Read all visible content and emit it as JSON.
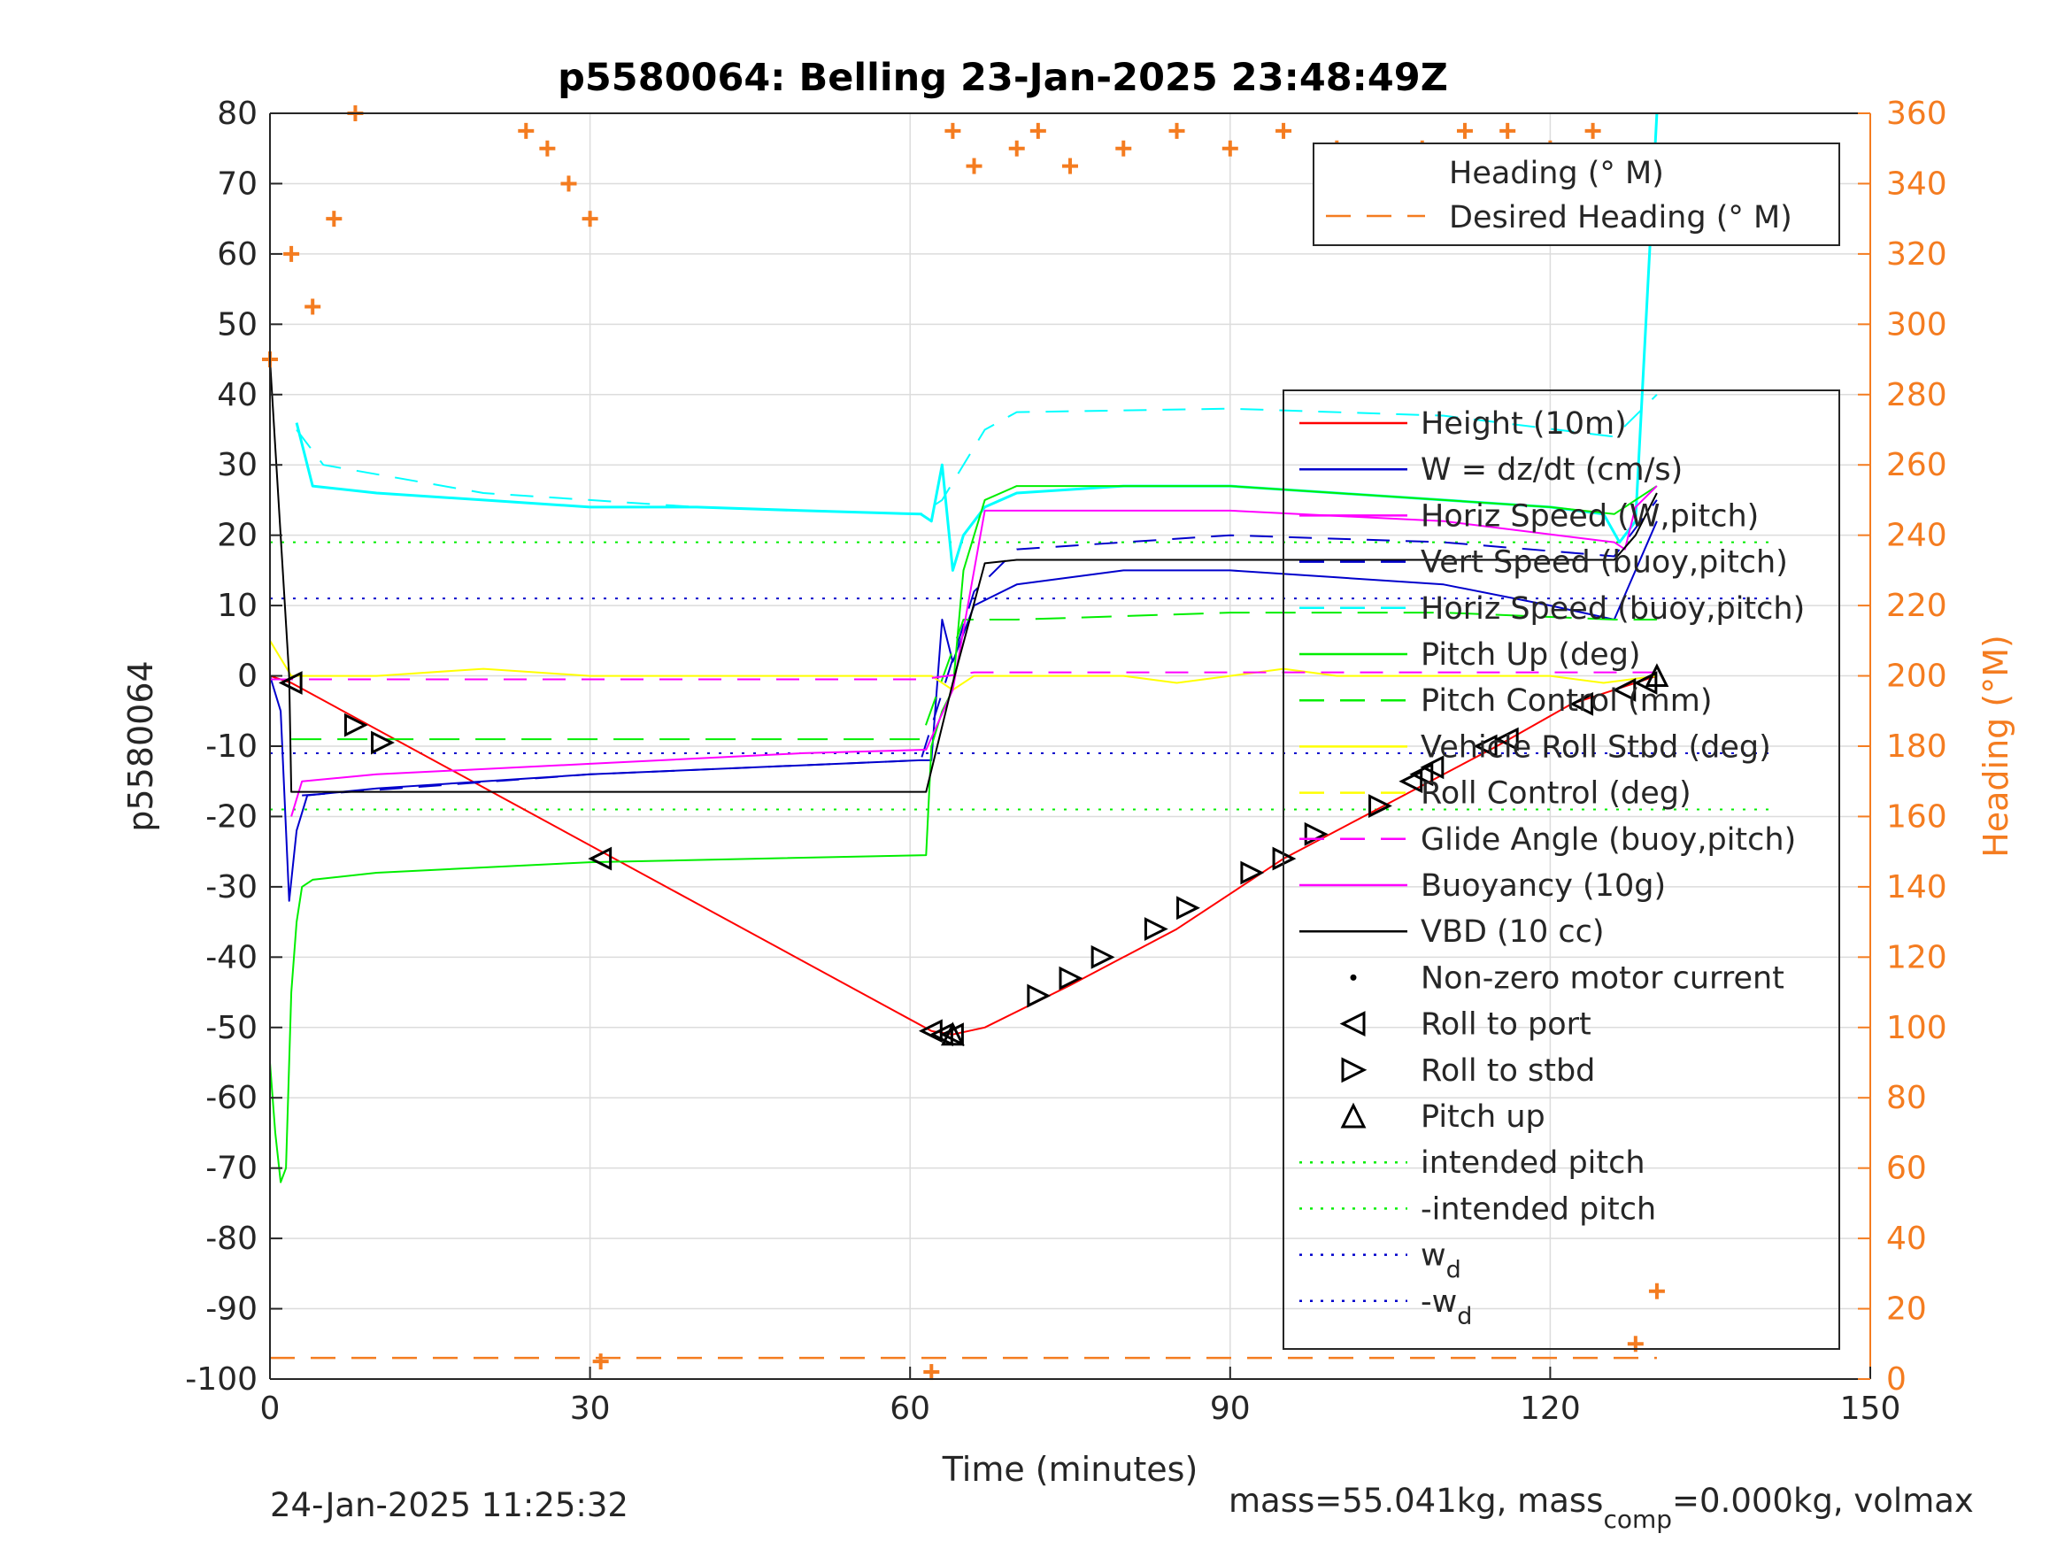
{
  "colors": {
    "heading": "#f47c20",
    "height": "#ff0000",
    "w": "#0000cc",
    "horiz_speed": "#00ffff",
    "pitch": "#00ee00",
    "roll": "#ffff00",
    "glide": "#ff00ff",
    "vbd": "#000000",
    "grid": "#dcdcdc"
  },
  "chart_data": {
    "type": "line",
    "title": "p5580064: Belling 23-Jan-2025 23:48:49Z",
    "xlabel": "Time (minutes)",
    "ylabel": "p5580064",
    "y2label": "Heading (°M)",
    "xlim": [
      0,
      150
    ],
    "ylim": [
      -100,
      80
    ],
    "y2lim": [
      0,
      360
    ],
    "x_ticks": [
      "0",
      "30",
      "60",
      "90",
      "120",
      "150"
    ],
    "y_ticks": [
      "80",
      "70",
      "60",
      "50",
      "40",
      "30",
      "20",
      "10",
      "0",
      "-10",
      "-20",
      "-30",
      "-40",
      "-50",
      "-60",
      "-70",
      "-80",
      "-90",
      "-100"
    ],
    "y2_ticks": [
      "360",
      "340",
      "320",
      "300",
      "280",
      "260",
      "240",
      "220",
      "200",
      "180",
      "160",
      "140",
      "120",
      "100",
      "80",
      "60",
      "40",
      "20",
      "0"
    ],
    "grid": true,
    "footer_left": "24-Jan-2025 11:25:32",
    "footer_right": "mass=55.041kg, mass",
    "footer_right_sub": "comp",
    "footer_right_tail": "=0.000kg, volmax",
    "legend_heading": {
      "placement": "top-right",
      "entries": [
        "Heading (° M)",
        "Desired Heading (° M)"
      ]
    },
    "legend_main": {
      "placement": "right",
      "entries": [
        {
          "label": "Height (10m)",
          "style": "line",
          "color": "#ff0000"
        },
        {
          "label": "W = dz/dt (cm/s)",
          "style": "line",
          "color": "#0000cc"
        },
        {
          "label": "Horiz Speed (W,pitch)",
          "style": "line",
          "color": "#ff00ff"
        },
        {
          "label": "Vert Speed (buoy,pitch)",
          "style": "dash",
          "color": "#0000cc"
        },
        {
          "label": "Horiz Speed (buoy,pitch)",
          "style": "dash",
          "color": "#00ffff"
        },
        {
          "label": "Pitch Up (deg)",
          "style": "line",
          "color": "#00ee00"
        },
        {
          "label": "Pitch Control (mm)",
          "style": "dash",
          "color": "#00ee00"
        },
        {
          "label": "Vehicle Roll Stbd (deg)",
          "style": "line",
          "color": "#ffff00"
        },
        {
          "label": "Roll Control (deg)",
          "style": "dash",
          "color": "#ffff00"
        },
        {
          "label": "Glide Angle (buoy,pitch)",
          "style": "dash",
          "color": "#ff00ff"
        },
        {
          "label": "Buoyancy (10g)",
          "style": "line",
          "color": "#ff00ff"
        },
        {
          "label": "VBD (10 cc)",
          "style": "line",
          "color": "#000000"
        },
        {
          "label": "Non-zero motor current",
          "style": "dot",
          "color": "#000000"
        },
        {
          "label": "Roll to port",
          "style": "tri-left",
          "color": "#000000"
        },
        {
          "label": "Roll to stbd",
          "style": "tri-right",
          "color": "#000000"
        },
        {
          "label": "Pitch up",
          "style": "tri-up",
          "color": "#000000"
        },
        {
          "label": "intended pitch",
          "style": "dot-line",
          "color": "#00ee00"
        },
        {
          "label": "-intended pitch",
          "style": "dot-line",
          "color": "#00ee00"
        },
        {
          "label": "w",
          "sub": "d",
          "style": "dot-line",
          "color": "#0000cc"
        },
        {
          "label": "-w",
          "sub": "d",
          "style": "dot-line",
          "color": "#0000cc"
        }
      ]
    },
    "reference_lines": {
      "intended_pitch": 19,
      "neg_intended_pitch": -19,
      "wd": 11,
      "neg_wd": -11,
      "desired_heading_deg": 6
    },
    "series": [
      {
        "name": "Height (10m)",
        "x": [
          0,
          2,
          62,
          64,
          67,
          75,
          85,
          95,
          105,
          115,
          122,
          126,
          130
        ],
        "y": [
          0,
          -1,
          -50.5,
          -51,
          -50,
          -44,
          -36,
          -26,
          -18,
          -10,
          -4,
          -2,
          0
        ]
      },
      {
        "name": "W = dz/dt (cm/s)",
        "x": [
          0,
          1,
          1.8,
          2.5,
          3.5,
          10,
          30,
          61,
          62,
          63,
          64,
          66,
          70,
          80,
          90,
          100,
          110,
          120,
          126,
          128,
          130
        ],
        "y": [
          0,
          -5,
          -32,
          -22,
          -17,
          -16,
          -14,
          -12,
          -12,
          8,
          2,
          10,
          13,
          15,
          15,
          14,
          13,
          10,
          8,
          15,
          22
        ]
      },
      {
        "name": "Vert Speed (buoy,pitch)",
        "x": [
          3,
          30,
          61,
          66,
          70,
          90,
          110,
          126,
          130
        ],
        "y": [
          -17,
          -14,
          -12,
          12,
          18,
          20,
          19,
          17,
          25
        ]
      },
      {
        "name": "Horiz Speed (buoy,pitch)",
        "x": [
          2.5,
          5,
          20,
          40,
          61,
          63,
          67,
          70,
          90,
          110,
          126,
          130
        ],
        "y": [
          35,
          30,
          26,
          24,
          23,
          25,
          35,
          37.5,
          38,
          37,
          34,
          40
        ]
      },
      {
        "name": "Horiz Speed (W,pitch)",
        "x": [
          2.5,
          4,
          10,
          20,
          30,
          40,
          50,
          61,
          62,
          63,
          64,
          65,
          67,
          70,
          80,
          90,
          100,
          110,
          120,
          125,
          126.5,
          128,
          130
        ],
        "y": [
          36,
          27,
          26,
          25,
          24,
          24,
          23.5,
          23,
          22,
          30,
          15,
          20,
          24,
          26,
          27,
          27,
          26,
          25,
          24,
          23,
          19,
          22,
          80
        ]
      },
      {
        "name": "Pitch Up (deg)",
        "x": [
          0,
          0.5,
          1,
          1.5,
          2,
          2.5,
          3,
          4,
          10,
          30,
          61.5,
          62,
          63,
          64,
          65,
          67,
          70,
          80,
          90,
          100,
          110,
          120,
          126,
          128,
          130
        ],
        "y": [
          -55,
          -65,
          -72,
          -70,
          -45,
          -35,
          -30,
          -29,
          -28,
          -26.5,
          -25.5,
          -10,
          -5,
          -2,
          15,
          25,
          27,
          27,
          27,
          26,
          25,
          24,
          23,
          25,
          27
        ]
      },
      {
        "name": "Pitch Control (mm)",
        "x": [
          2,
          10,
          30,
          61,
          65,
          70,
          90,
          110,
          126,
          128,
          130
        ],
        "y": [
          -9,
          -9,
          -9,
          -9,
          8,
          8,
          9,
          9,
          8,
          8,
          8
        ]
      },
      {
        "name": "Vehicle Roll Stbd (deg)",
        "x": [
          0,
          2,
          10,
          20,
          30,
          40,
          50,
          60,
          62,
          64,
          66,
          70,
          80,
          85,
          90,
          95,
          100,
          110,
          120,
          125,
          130
        ],
        "y": [
          5,
          0,
          0,
          1,
          0,
          0,
          0,
          0,
          0,
          -2,
          0,
          0,
          0,
          -1,
          0,
          1,
          0,
          0,
          0,
          -1,
          0
        ]
      },
      {
        "name": "Glide Angle (buoy,pitch)",
        "x": [
          0,
          30,
          61,
          66,
          90,
          130
        ],
        "y": [
          -0.5,
          -0.5,
          -0.5,
          0.5,
          0.5,
          0.5
        ]
      },
      {
        "name": "Buoyancy (10g)",
        "x": [
          2,
          3,
          10,
          30,
          50,
          61.5,
          64,
          67,
          70,
          90,
          110,
          126,
          127,
          128,
          130
        ],
        "y": [
          -20,
          -15,
          -14,
          -12.5,
          -11,
          -10.5,
          -2,
          23.5,
          23.5,
          23.5,
          22,
          19,
          18,
          24,
          27
        ]
      },
      {
        "name": "VBD (10 cc)",
        "x": [
          0,
          1.8,
          2,
          61.5,
          64,
          67,
          70,
          90,
          110,
          126,
          128,
          130
        ],
        "y": [
          45,
          0,
          -16.5,
          -16.5,
          -1,
          16,
          16.5,
          16.5,
          16.5,
          16.5,
          20,
          26
        ]
      },
      {
        "name": "Roll to port",
        "x": [
          2,
          31,
          62,
          63,
          64,
          107,
          108,
          109,
          114,
          116,
          123,
          127,
          129
        ],
        "y": [
          -1,
          -26,
          -50.5,
          -51,
          -51,
          -15,
          -14,
          -13,
          -10,
          -9,
          -4,
          -2,
          -1
        ]
      },
      {
        "name": "Roll to stbd",
        "x": [
          8,
          10.5,
          72,
          75,
          78,
          83,
          86,
          92,
          95,
          98,
          104
        ],
        "y": [
          -7,
          -9.5,
          -45.5,
          -43,
          -40,
          -36,
          -33,
          -28,
          -26,
          -22.5,
          -18.5
        ]
      },
      {
        "name": "Pitch up",
        "x": [
          64,
          130
        ],
        "y": [
          -51,
          0
        ]
      },
      {
        "name": "Heading (° M)",
        "x": [
          0,
          2,
          4,
          6,
          8,
          24,
          26,
          28,
          30,
          31,
          62,
          64,
          66,
          70,
          72,
          75,
          80,
          85,
          90,
          95,
          100,
          104,
          108,
          112,
          116,
          120,
          124,
          128,
          130
        ],
        "y": [
          290,
          320,
          305,
          330,
          360,
          355,
          350,
          340,
          330,
          5,
          2,
          355,
          345,
          350,
          355,
          345,
          350,
          355,
          350,
          355,
          350,
          345,
          350,
          355,
          355,
          350,
          355,
          10,
          25
        ]
      },
      {
        "name": "Desired Heading (° M)",
        "x": [
          0,
          130
        ],
        "y": [
          6,
          6
        ]
      }
    ]
  }
}
